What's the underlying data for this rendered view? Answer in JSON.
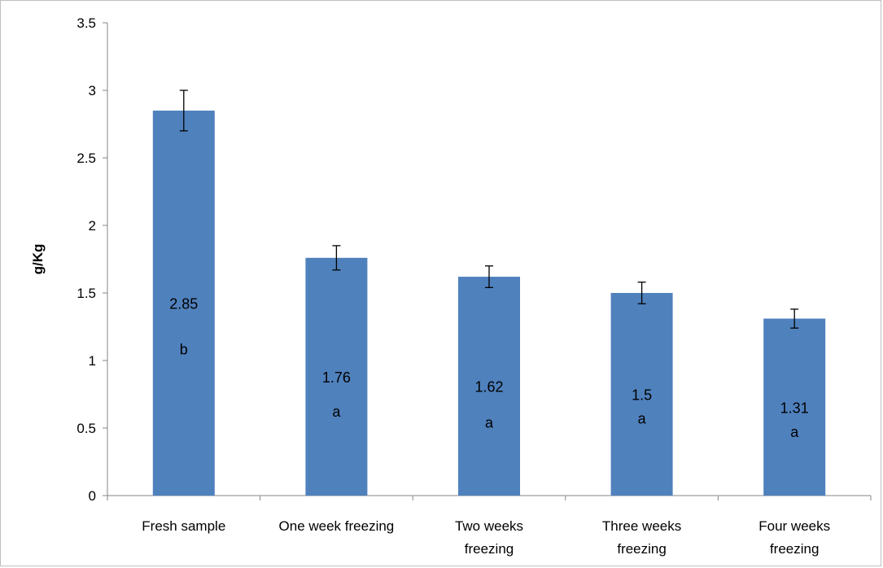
{
  "chart_data": {
    "type": "bar",
    "title": "",
    "xlabel": "",
    "ylabel": "g/Kg",
    "ylim": [
      0,
      3.5
    ],
    "ytick_step": 0.5,
    "yticks": [
      "0",
      "0.5",
      "1",
      "1.5",
      "2",
      "2.5",
      "3",
      "3.5"
    ],
    "bar_color": "#4f81bd",
    "grid": false,
    "categories": [
      [
        "Fresh sample"
      ],
      [
        "One week freezing"
      ],
      [
        "Two weeks",
        "freezing"
      ],
      [
        "Three weeks",
        "freezing"
      ],
      [
        "Four weeks",
        "freezing"
      ]
    ],
    "values": [
      2.85,
      1.76,
      1.62,
      1.5,
      1.31
    ],
    "value_labels": [
      "2.85",
      "1.76",
      "1.62",
      "1.5",
      "1.31"
    ],
    "error": [
      0.15,
      0.09,
      0.08,
      0.08,
      0.07
    ],
    "significance_letters": [
      "b",
      "a",
      "a",
      "a",
      "a"
    ],
    "letter_positions_y": [
      1.08,
      0.62,
      0.54,
      0.57,
      0.47
    ]
  }
}
